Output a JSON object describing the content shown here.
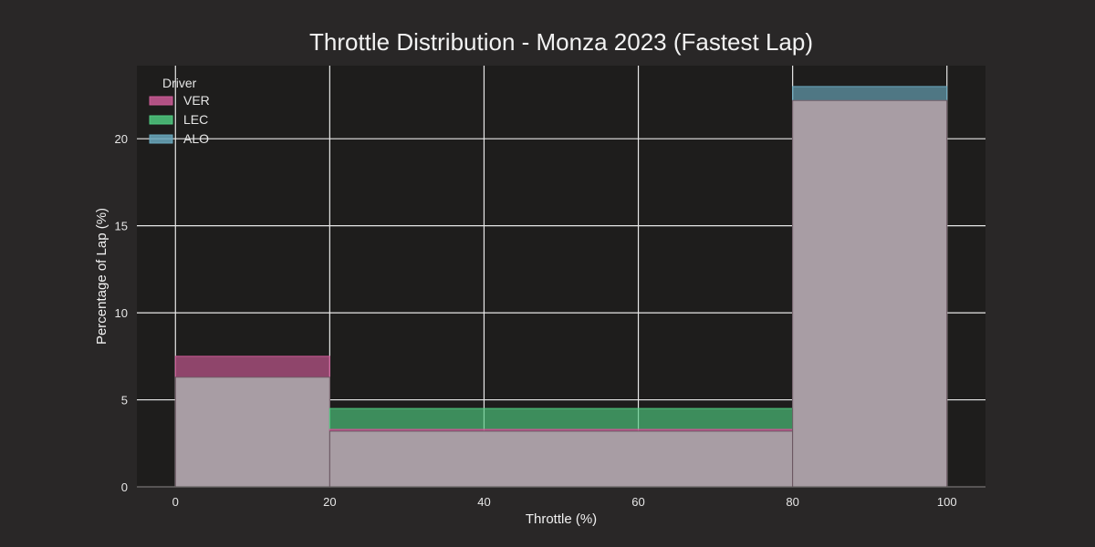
{
  "chart_data": {
    "type": "bar",
    "title": "Throttle Distribution - Monza 2023 (Fastest Lap)",
    "xlabel": "Throttle (%)",
    "ylabel": "Percentage of Lap (%)",
    "xlim": [
      -5,
      105
    ],
    "ylim": [
      0,
      24.2
    ],
    "xticks": [
      0,
      20,
      40,
      60,
      80,
      100
    ],
    "yticks": [
      0,
      5,
      10,
      15,
      20
    ],
    "bins": [
      [
        0,
        20
      ],
      [
        20,
        80
      ],
      [
        80,
        100
      ]
    ],
    "grid": true,
    "legend": {
      "title": "Driver",
      "placement": "top-left"
    },
    "series": [
      {
        "name": "VER",
        "color": "#cc5a96",
        "values": [
          7.5,
          3.3,
          22.2
        ]
      },
      {
        "name": "LEC",
        "color": "#4fc97f",
        "values": [
          6.3,
          4.5,
          22.2
        ]
      },
      {
        "name": "ALO",
        "color": "#6aa8bd",
        "values": [
          6.3,
          3.2,
          23.0
        ]
      }
    ],
    "colors": {
      "background": "#292727",
      "plot_background": "#1e1d1c",
      "grid": "#e8e8e8",
      "overlap": "#a89da4"
    }
  }
}
